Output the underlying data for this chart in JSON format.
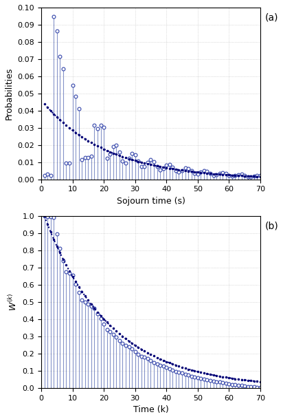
{
  "xlim_a": [
    0,
    70
  ],
  "ylim_a": [
    0,
    0.1
  ],
  "xlabel_a": "Sojourn time (s)",
  "ylabel_a": "Probabilities",
  "xlim_b": [
    0,
    70
  ],
  "ylim_b": [
    0,
    1.0
  ],
  "xlabel_b": "Time (k)",
  "ylabel_b": "W^{(k)}",
  "color_stem": "#6666cc",
  "color_circle": "#3333aa",
  "color_dot": "#000066",
  "n_points": 70,
  "geom_p_a": 0.047,
  "geom_scale_a": 0.044,
  "geom_p_b": 0.047,
  "label_a": "(a)",
  "label_b": "(b)"
}
